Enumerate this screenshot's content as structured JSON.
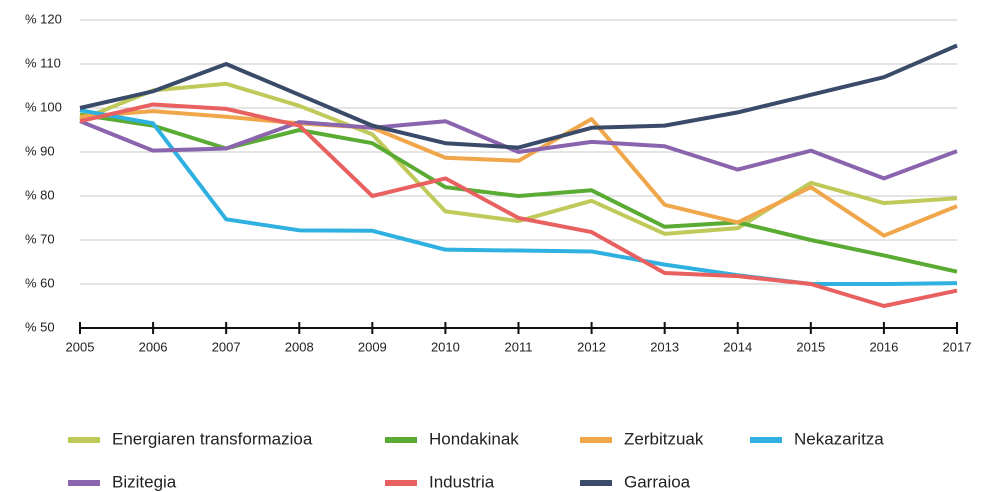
{
  "chart_data": {
    "type": "line",
    "categories": [
      "2005",
      "2006",
      "2007",
      "2008",
      "2009",
      "2010",
      "2011",
      "2012",
      "2013",
      "2014",
      "2015",
      "2016",
      "2017"
    ],
    "series": [
      {
        "name": "Energiaren transformazioa",
        "color": "#bfca5a",
        "values": [
          97.3,
          104,
          105.5,
          100.5,
          94,
          76.5,
          74.3,
          78.9,
          71.4,
          72.7,
          83,
          78.4,
          79.5
        ]
      },
      {
        "name": "Hondakinak",
        "color": "#5aab33",
        "values": [
          98.5,
          96,
          90.8,
          95,
          92,
          82,
          80,
          81.3,
          73,
          74,
          70,
          66.5,
          62.8
        ]
      },
      {
        "name": "Zerbitzuak",
        "color": "#f0a64a",
        "values": [
          98,
          99.3,
          98,
          96.5,
          95.5,
          88.7,
          88,
          97.5,
          78,
          74,
          82,
          71,
          77.7
        ]
      },
      {
        "name": "Nekazaritza",
        "color": "#2eb1e0",
        "values": [
          99.5,
          96.5,
          74.7,
          72.2,
          72.1,
          67.8,
          67.6,
          67.4,
          64.4,
          62,
          60,
          60,
          60.2
        ]
      },
      {
        "name": "Bizitegia",
        "color": "#8a65ae",
        "values": [
          97,
          90.3,
          90.8,
          96.8,
          95.5,
          97,
          90,
          92.3,
          91.3,
          86,
          90.3,
          84,
          90.2
        ]
      },
      {
        "name": "Industria",
        "color": "#e8605f",
        "values": [
          97,
          100.8,
          99.8,
          96,
          80,
          84,
          75,
          71.8,
          62.5,
          61.8,
          60,
          55,
          58.5
        ]
      },
      {
        "name": "Garraioa",
        "color": "#3a4a69",
        "values": [
          100,
          103.8,
          110,
          103,
          96,
          92,
          91,
          95.5,
          96,
          99,
          103,
          107,
          114.2
        ]
      }
    ],
    "ylim": [
      50,
      120
    ],
    "yticks": [
      {
        "value": 50,
        "label": "% 50"
      },
      {
        "value": 60,
        "label": "% 60"
      },
      {
        "value": 70,
        "label": "% 70"
      },
      {
        "value": 80,
        "label": "% 80"
      },
      {
        "value": 90,
        "label": "% 90"
      },
      {
        "value": 100,
        "label": "% 100"
      },
      {
        "value": 110,
        "label": "% 110"
      },
      {
        "value": 120,
        "label": "% 120"
      }
    ],
    "grid": true,
    "legend": "bottom"
  }
}
